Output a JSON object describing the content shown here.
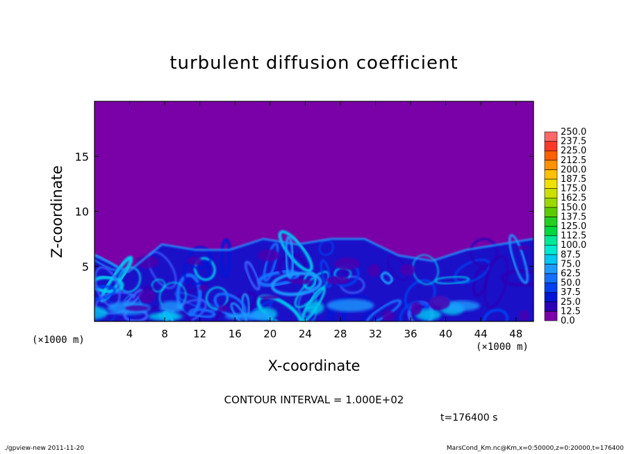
{
  "chart_data": {
    "type": "heatmap",
    "title": "turbulent diffusion coefficient",
    "xlabel": "X-coordinate",
    "ylabel": "Z-coordinate",
    "x_unit_label": "(×1000 m)",
    "x_unit_label_right": "(×1000 m)",
    "xlim": [
      0,
      50
    ],
    "ylim": [
      0,
      20
    ],
    "x_ticks": [
      4,
      8,
      12,
      16,
      20,
      24,
      28,
      32,
      36,
      40,
      44,
      48
    ],
    "y_ticks": [
      5,
      10,
      15
    ],
    "colorbar": {
      "levels": [
        "0.0",
        "12.5",
        "25.0",
        "37.5",
        "50.0",
        "62.5",
        "75.0",
        "87.5",
        "100.0",
        "112.5",
        "125.0",
        "137.5",
        "150.0",
        "162.5",
        "175.0",
        "187.5",
        "200.0",
        "212.5",
        "225.0",
        "237.5",
        "250.0"
      ],
      "colors": [
        "#7a00a8",
        "#2a00b8",
        "#0014d8",
        "#0040f0",
        "#1670ff",
        "#1e9bff",
        "#00c8f0",
        "#00e8d0",
        "#00e898",
        "#00d840",
        "#22d020",
        "#5ccc00",
        "#9ad800",
        "#cce000",
        "#f0e000",
        "#ffc000",
        "#ff9000",
        "#ff6000",
        "#ff3828",
        "#ff6868",
        "#ff9a9a"
      ]
    },
    "background_value": "0.0",
    "turbulent_layer_top_km_approx": [
      6,
      4.5,
      7,
      6.5,
      6.5,
      7.5,
      7,
      7.5,
      7.5,
      6,
      5.5,
      6.5,
      7,
      7.5
    ]
  },
  "annotations": {
    "contour_interval": "CONTOUR INTERVAL = 1.000E+02",
    "time": "t=176400 s",
    "footer_left": "./gpview-new 2011-11-20",
    "footer_right": "MarsCond_Km.nc@Km,x=0:50000,z=0:20000,t=176400"
  }
}
